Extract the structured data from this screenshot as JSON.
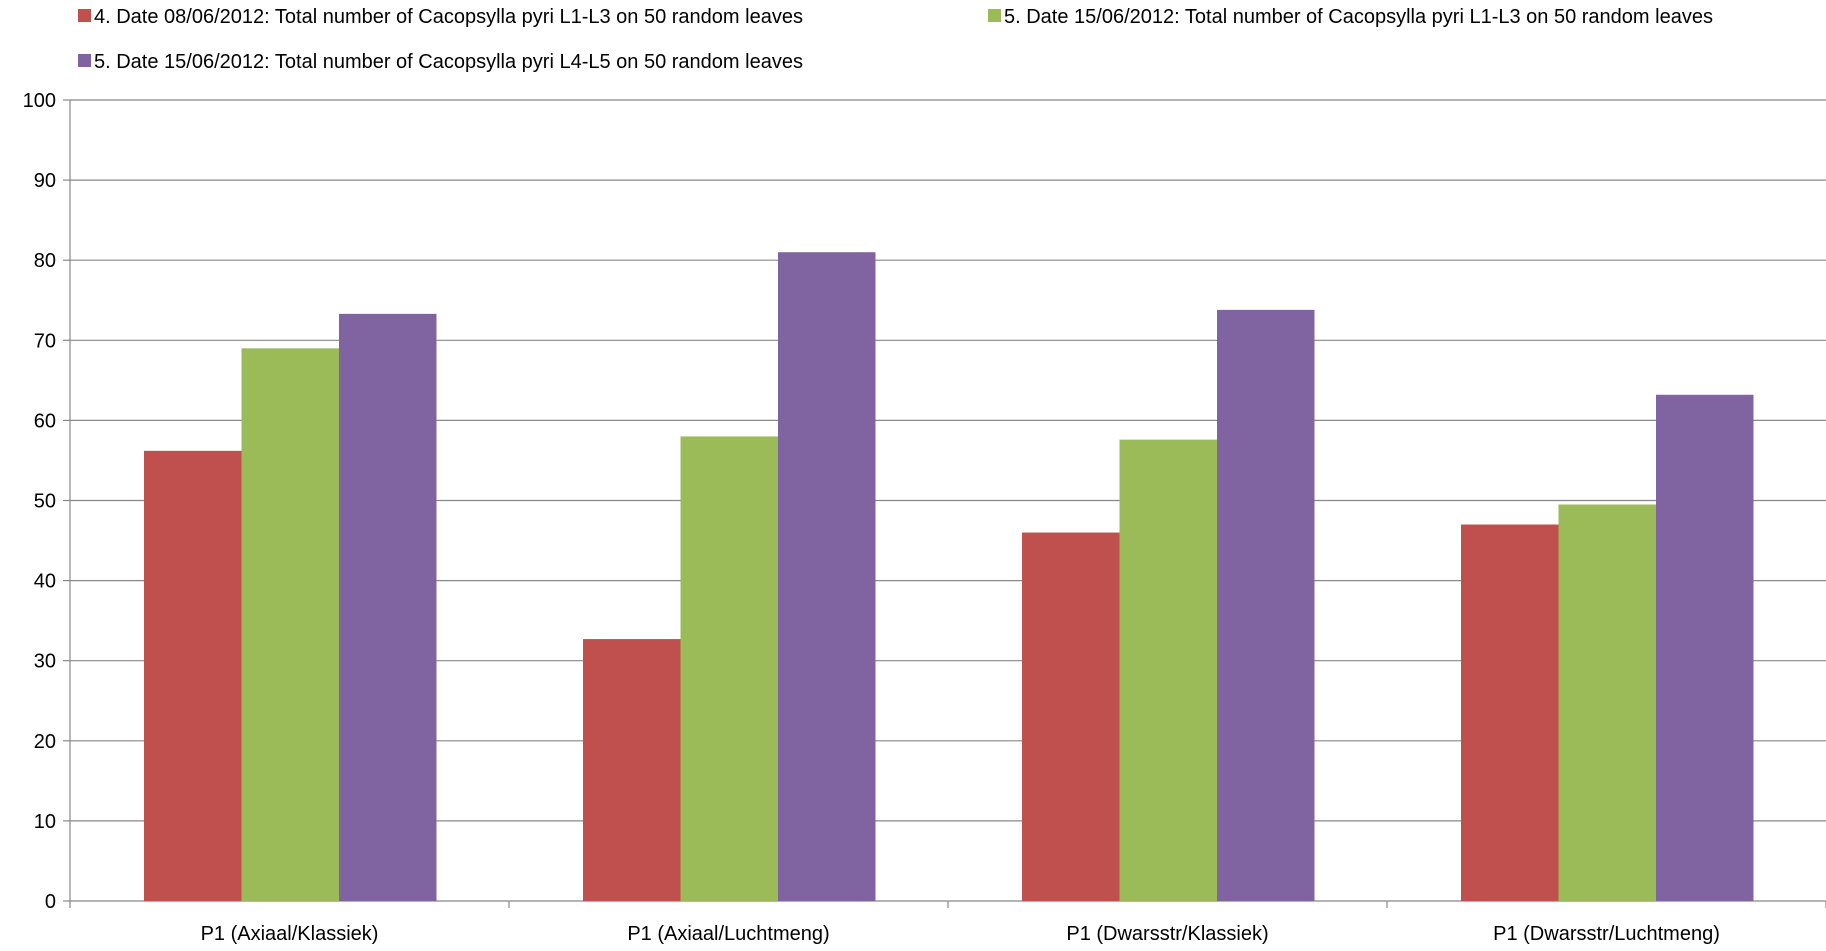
{
  "chart_data": {
    "type": "bar",
    "title": "",
    "xlabel": "",
    "ylabel": "",
    "ylim": [
      0,
      100
    ],
    "yticks": [
      0,
      10,
      20,
      30,
      40,
      50,
      60,
      70,
      80,
      90,
      100
    ],
    "grid": true,
    "legend_position": "top",
    "categories": [
      "P1 (Axiaal/Klassiek)",
      "P1 (Axiaal/Luchtmeng)",
      "P1 (Dwarsstr/Klassiek)",
      "P1 (Dwarsstr/Luchtmeng)"
    ],
    "series": [
      {
        "name": "4. Date 08/06/2012: Total number of Cacopsylla pyri L1-L3 on 50 random leaves",
        "color": "#C0504D",
        "values": [
          56.2,
          32.7,
          46.0,
          47.0
        ]
      },
      {
        "name": "5. Date 15/06/2012: Total number of Cacopsylla pyri L1-L3 on 50 random leaves",
        "color": "#9BBB59",
        "values": [
          69.0,
          58.0,
          57.6,
          49.5
        ]
      },
      {
        "name": "5. Date 15/06/2012: Total number of Cacopsylla pyri L4-L5 on 50 random leaves",
        "color": "#8064A2",
        "values": [
          73.3,
          81.0,
          73.8,
          63.2
        ]
      }
    ]
  }
}
